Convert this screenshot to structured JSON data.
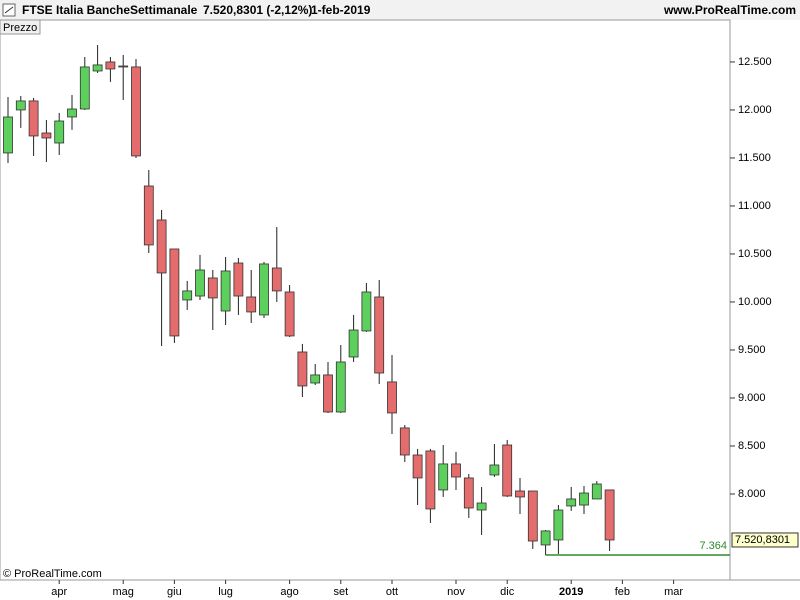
{
  "chart_data": {
    "type": "candlestick",
    "title": "FTSE Italia Banche",
    "subtitle": "Settimanale",
    "last_quote": "7.520,8301 (-2,12%)",
    "date": "1-feb-2019",
    "website": "www.ProRealTime.com",
    "panel_label": "Prezzo",
    "copyright": "© ProRealTime.com",
    "categories": [
      null,
      null,
      null,
      null,
      "apr",
      null,
      null,
      null,
      null,
      "mag",
      null,
      null,
      null,
      "giu",
      null,
      null,
      null,
      "lug",
      null,
      null,
      null,
      null,
      "ago",
      null,
      null,
      null,
      "set",
      null,
      null,
      null,
      "ott",
      null,
      null,
      null,
      null,
      "nov",
      null,
      null,
      null,
      "dic",
      null,
      null,
      null,
      null,
      "2019",
      null,
      null,
      null,
      "feb",
      null,
      null,
      null,
      "mar",
      null,
      null,
      null
    ],
    "open": [
      11552,
      12000,
      12094,
      11760,
      11656,
      11927,
      12010,
      12406,
      12500,
      12458,
      12448,
      11208,
      10854,
      10552,
      10021,
      10062,
      10250,
      9906,
      10406,
      10052,
      9865,
      10354,
      10104,
      9479,
      9156,
      9240,
      8854,
      9427,
      9698,
      10052,
      9167,
      8688,
      8406,
      8448,
      8042,
      8313,
      8167,
      7833,
      8198,
      8510,
      8031,
      8031,
      7469,
      7521,
      7875,
      7885,
      7948,
      8042,
      null,
      null,
      null,
      null,
      null,
      null,
      null,
      null
    ],
    "high": [
      12135,
      12146,
      12125,
      11896,
      11969,
      12156,
      12552,
      12677,
      12552,
      12573,
      12531,
      11375,
      10958,
      10552,
      10219,
      10490,
      10333,
      10469,
      10458,
      10333,
      10417,
      10781,
      10177,
      9563,
      9354,
      9375,
      9552,
      9865,
      10198,
      10229,
      9448,
      8719,
      8469,
      8469,
      8510,
      8438,
      8208,
      8073,
      8521,
      8563,
      8167,
      8031,
      7625,
      7885,
      8073,
      8083,
      8135,
      8042,
      null,
      null,
      null,
      null,
      null,
      null,
      null,
      null
    ],
    "low": [
      11448,
      11813,
      11521,
      11458,
      11531,
      11792,
      12000,
      12385,
      12292,
      12104,
      11500,
      10510,
      9542,
      9573,
      9917,
      10021,
      9708,
      9760,
      9865,
      9781,
      9833,
      10000,
      9635,
      9010,
      9135,
      8844,
      8844,
      9375,
      9688,
      9146,
      8625,
      8333,
      7885,
      7698,
      7969,
      8042,
      7750,
      7573,
      8177,
      7969,
      7792,
      7427,
      7364,
      7375,
      7823,
      7792,
      7948,
      7406,
      null,
      null,
      null,
      null,
      null,
      null,
      null,
      null
    ],
    "close": [
      11927,
      12094,
      11729,
      11708,
      11885,
      12010,
      12448,
      12469,
      12427,
      12448,
      11521,
      10594,
      10302,
      9646,
      10115,
      10333,
      10042,
      10323,
      10062,
      9896,
      10396,
      10115,
      9646,
      9125,
      9240,
      8854,
      9375,
      9708,
      10104,
      9260,
      8844,
      8406,
      8167,
      7844,
      8313,
      8177,
      7854,
      7906,
      8302,
      7979,
      7969,
      7510,
      7615,
      7833,
      7948,
      8010,
      8104,
      7520.8301,
      null,
      null,
      null,
      null,
      null,
      null,
      null,
      null
    ],
    "up_color": "#5ccf5c",
    "down_color": "#e46c6c",
    "ylim": [
      7104,
      12937
    ],
    "yticks": [
      {
        "value": 8000,
        "label": "8.000"
      },
      {
        "value": 8500,
        "label": "8.500"
      },
      {
        "value": 9000,
        "label": "9.000"
      },
      {
        "value": 9500,
        "label": "9.500"
      },
      {
        "value": 10000,
        "label": "10.000"
      },
      {
        "value": 10500,
        "label": "10.500"
      },
      {
        "value": 11000,
        "label": "11.000"
      },
      {
        "value": 11500,
        "label": "11.500"
      },
      {
        "value": 12000,
        "label": "12.000"
      },
      {
        "value": 12500,
        "label": "12.500"
      }
    ],
    "last_price": {
      "value": 7520.8301,
      "label": "7.520,8301"
    },
    "support_level": {
      "value": 7364,
      "label": "7.364",
      "color": "#2e8b2e"
    }
  }
}
